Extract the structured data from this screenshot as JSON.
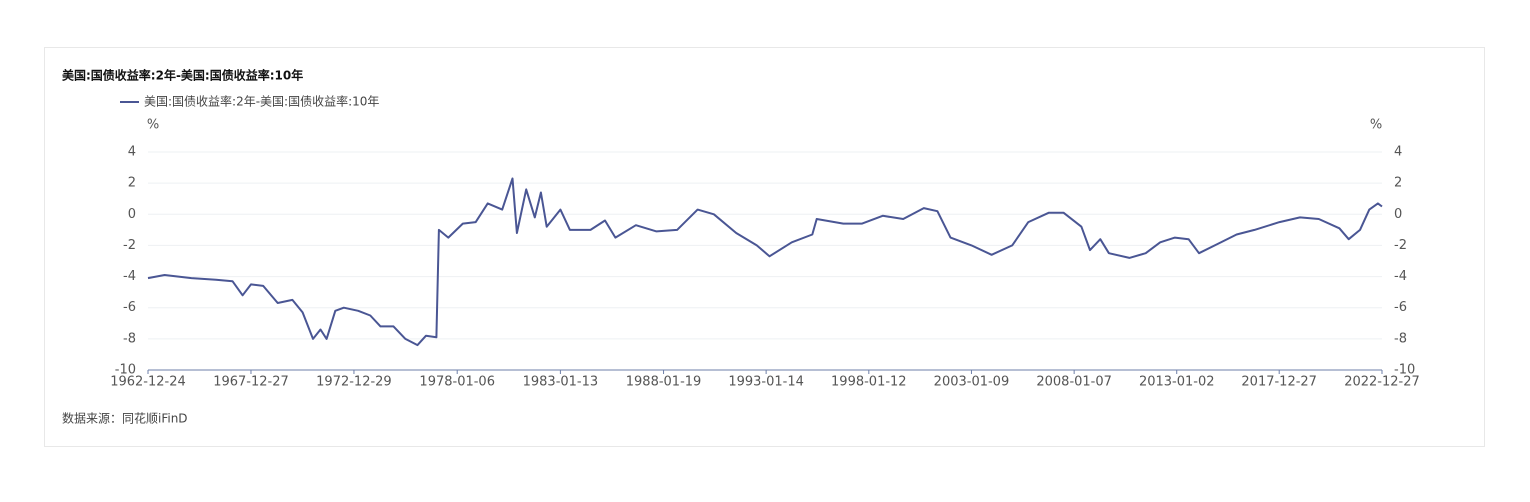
{
  "chart_data": {
    "type": "line",
    "title": "美国:国债收益率:2年-美国:国债收益率:10年",
    "y_unit": "%",
    "y2_unit": "%",
    "source": "数据来源：同花顺iFinD",
    "x": [
      "1962-12-24",
      "1963-10-15",
      "1965-02-01",
      "1966-04-15",
      "1967-02-01",
      "1967-08-01",
      "1967-12-27",
      "1968-08-01",
      "1969-04-15",
      "1970-01-01",
      "1970-07-01",
      "1971-01-01",
      "1971-05-15",
      "1971-09-01",
      "1972-02-01",
      "1972-07-01",
      "1973-03-15",
      "1973-10-15",
      "1974-04-15",
      "1974-12-01",
      "1975-07-01",
      "1976-02-01",
      "1976-07-01",
      "1977-01-01",
      "1977-02-15",
      "1977-08-01",
      "1978-04-15",
      "1978-12-01",
      "1979-07-01",
      "1980-03-15",
      "1980-09-15",
      "1980-12-01",
      "1981-05-15",
      "1981-10-15",
      "1982-02-01",
      "1982-05-15",
      "1983-01-13",
      "1983-07-01",
      "1984-07-01",
      "1985-03-15",
      "1985-09-15",
      "1986-09-15",
      "1987-09-15",
      "1988-09-15",
      "1989-09-15",
      "1990-07-01",
      "1991-08-01",
      "1992-08-01",
      "1993-03-15",
      "1994-04-15",
      "1995-04-15",
      "1995-07-01",
      "1996-10-15",
      "1997-09-15",
      "1998-09-15",
      "1999-09-15",
      "2000-09-15",
      "2001-05-15",
      "2002-01-01",
      "2003-01-09",
      "2004-01-01",
      "2005-01-01",
      "2005-10-15",
      "2006-10-15",
      "2007-07-01",
      "2008-05-15",
      "2008-10-15",
      "2009-04-15",
      "2009-09-15",
      "2010-09-15",
      "2011-07-01",
      "2012-03-15",
      "2012-12-01",
      "2013-08-01",
      "2014-02-01",
      "2015-01-01",
      "2015-12-01",
      "2016-10-15",
      "2018-01-01",
      "2019-01-01",
      "2019-12-01",
      "2020-12-01",
      "2021-05-15",
      "2021-12-01",
      "2022-05-15",
      "2022-10-15",
      "2022-12-27"
    ],
    "series": [
      {
        "name": "美国:国债收益率:2年-美国:国债收益率:10年",
        "color": "#4a5694",
        "values": [
          -4.1,
          -3.9,
          -4.1,
          -4.2,
          -4.3,
          -5.2,
          -4.5,
          -4.6,
          -5.7,
          -5.5,
          -6.3,
          -8.0,
          -7.4,
          -8.0,
          -6.2,
          -6.0,
          -6.2,
          -6.5,
          -7.2,
          -7.2,
          -8.0,
          -8.4,
          -7.8,
          -7.9,
          -1.0,
          -1.5,
          -0.6,
          -0.5,
          0.7,
          0.3,
          2.3,
          -1.2,
          1.6,
          -0.2,
          1.4,
          -0.8,
          0.3,
          -1.0,
          -1.0,
          -0.4,
          -1.5,
          -0.7,
          -1.1,
          -1.0,
          0.3,
          0.0,
          -1.2,
          -2.0,
          -2.7,
          -1.8,
          -1.3,
          -0.3,
          -0.6,
          -0.6,
          -0.1,
          -0.3,
          0.4,
          0.2,
          -1.5,
          -2.0,
          -2.6,
          -2.0,
          -0.5,
          0.1,
          0.1,
          -0.8,
          -2.3,
          -1.6,
          -2.5,
          -2.8,
          -2.5,
          -1.8,
          -1.5,
          -1.6,
          -2.5,
          -1.9,
          -1.3,
          -1.0,
          -0.5,
          -0.2,
          -0.3,
          -0.9,
          -1.6,
          -1.0,
          0.3,
          0.7,
          0.5
        ]
      }
    ],
    "xlim": [
      "1962-12-24",
      "2022-12-27"
    ],
    "xticks": [
      "1962-12-24",
      "1967-12-27",
      "1972-12-29",
      "1978-01-06",
      "1983-01-13",
      "1988-01-19",
      "1993-01-14",
      "1998-01-12",
      "2003-01-09",
      "2008-01-07",
      "2013-01-02",
      "2017-12-27",
      "2022-12-27"
    ],
    "ylim": [
      -10,
      4
    ],
    "yticks": [
      -10,
      -8,
      -6,
      -4,
      -2,
      0,
      2,
      4
    ],
    "y2lim": [
      -10,
      4
    ],
    "y2ticks": [
      -10,
      -8,
      -6,
      -4,
      -2,
      0,
      2,
      4
    ],
    "grid": true
  }
}
